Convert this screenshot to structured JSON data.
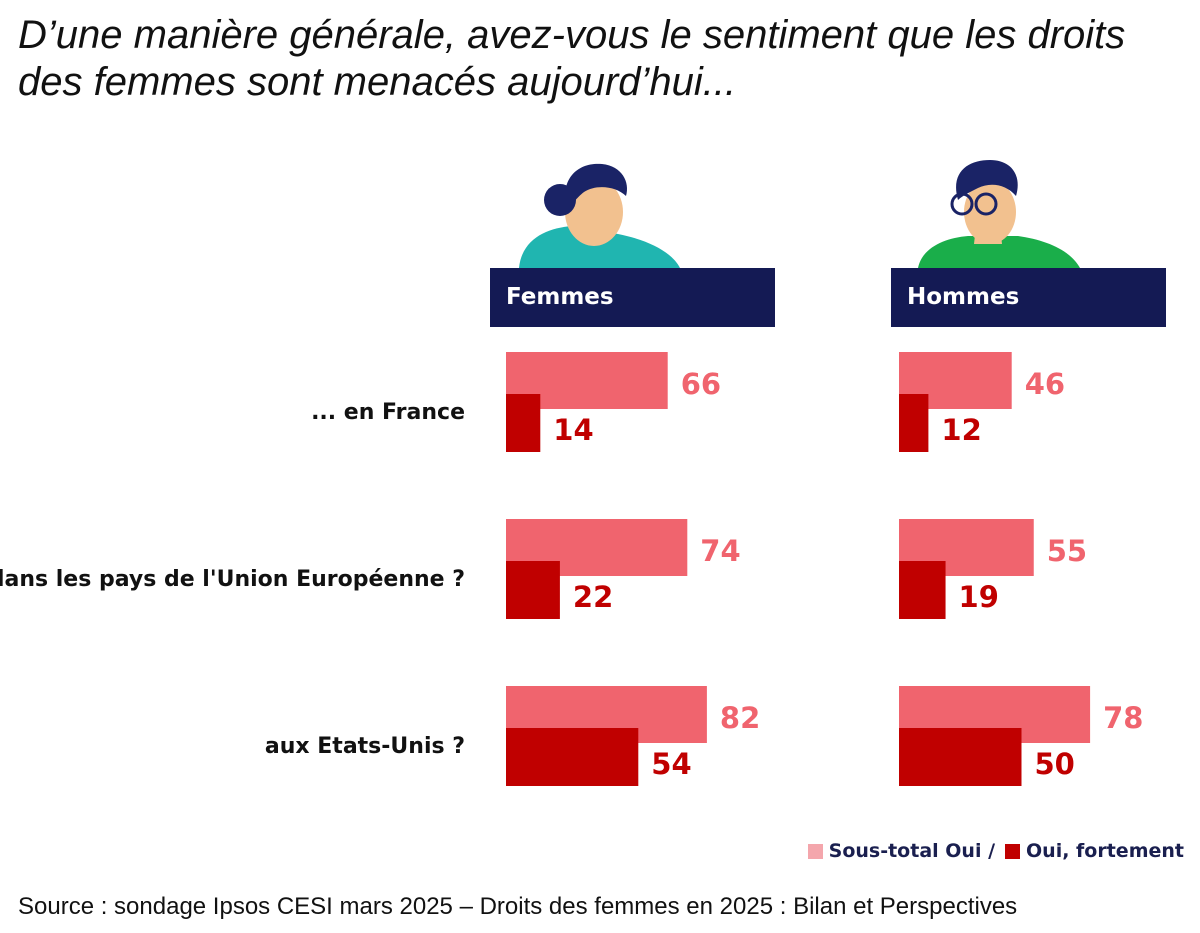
{
  "title": "D’une manière générale, avez-vous le sentiment que les droits des femmes sont menacés aujourd’hui...",
  "chart_data": {
    "type": "bar",
    "orientation": "horizontal",
    "title": "D’une manière générale, avez-vous le sentiment que les droits des femmes sont menacés aujourd’hui...",
    "categories": [
      "... en France",
      "dans les pays de l'Union Européenne ?",
      "aux Etats-Unis ?"
    ],
    "groups": [
      {
        "name": "Femmes",
        "series": [
          {
            "name": "Sous-total Oui",
            "values": [
              66,
              74,
              82
            ]
          },
          {
            "name": "Oui, fortement",
            "values": [
              14,
              22,
              54
            ]
          }
        ]
      },
      {
        "name": "Hommes",
        "series": [
          {
            "name": "Sous-total Oui",
            "values": [
              46,
              55,
              78
            ]
          },
          {
            "name": "Oui, fortement",
            "values": [
              12,
              19,
              50
            ]
          }
        ]
      }
    ],
    "grid": false
  },
  "colors": {
    "sous_total": "#f0646e",
    "fortement": "#c00000",
    "header_bg": "#141a54",
    "femme_top": "#20b5b0",
    "homme_top": "#1aae4a",
    "hair": "#1a2366",
    "skin": "#f2c18f"
  },
  "icons": [
    "woman-avatar-icon",
    "man-avatar-icon"
  ],
  "legend": {
    "sous_total": "Sous-total Oui /",
    "fortement": "Oui, fortement"
  },
  "source": "Source : sondage Ipsos CESI mars 2025 – Droits des femmes en 2025 : Bilan et Perspectives"
}
